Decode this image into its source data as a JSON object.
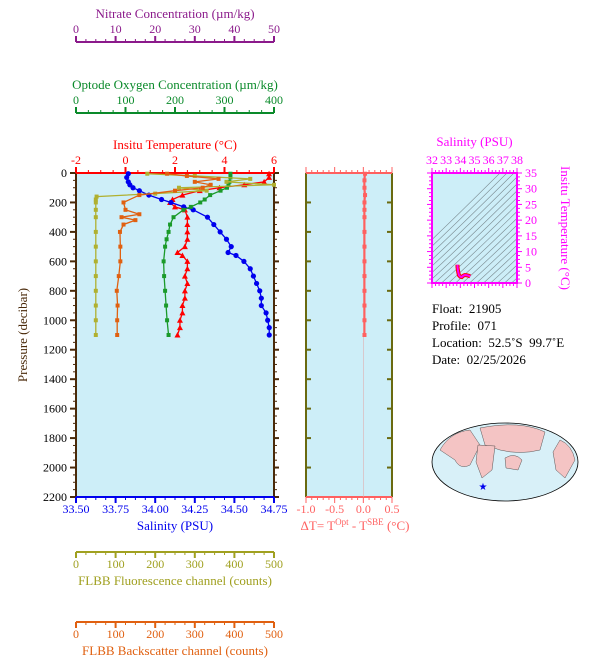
{
  "chart_data": [
    {
      "type": "line",
      "title": "",
      "ylabel": "Pressure (decibar)",
      "ylim": [
        2200,
        0
      ],
      "yticks": [
        0,
        200,
        400,
        600,
        800,
        1000,
        1200,
        1400,
        1600,
        1800,
        2000,
        2200
      ],
      "axes": [
        {
          "key": "nitrate",
          "label": "Nitrate Concentration (µm/kg)",
          "range": [
            0,
            50
          ],
          "ticks": [
            "0",
            "10",
            "20",
            "30",
            "40",
            "50"
          ],
          "color": "#8b1a8b",
          "position": "top"
        },
        {
          "key": "oxygen",
          "label": "Optode Oxygen Concentration (µm/kg)",
          "range": [
            0,
            400
          ],
          "ticks": [
            "0",
            "100",
            "200",
            "300",
            "400"
          ],
          "color": "#0a8a2a",
          "position": "top"
        },
        {
          "key": "temp",
          "label": "Insitu Temperature (°C)",
          "range": [
            -2,
            6
          ],
          "ticks": [
            "-2",
            "0",
            "2",
            "4",
            "6"
          ],
          "color": "#ff0000",
          "position": "top"
        },
        {
          "key": "sal",
          "label": "Salinity (PSU)",
          "range": [
            33.5,
            34.75
          ],
          "ticks": [
            "33.50",
            "33.75",
            "34.00",
            "34.25",
            "34.50",
            "34.75"
          ],
          "color": "#0000ee",
          "position": "bottom"
        },
        {
          "key": "fluor",
          "label": "FLBB Fluorescence channel (counts)",
          "range": [
            0,
            500
          ],
          "ticks": [
            "0",
            "100",
            "200",
            "300",
            "400",
            "500"
          ],
          "color": "#a0a020",
          "position": "bottom"
        },
        {
          "key": "bb",
          "label": "FLBB Backscatter channel (counts)",
          "range": [
            0,
            500
          ],
          "ticks": [
            "0",
            "100",
            "200",
            "300",
            "400",
            "500"
          ],
          "color": "#e06010",
          "position": "bottom"
        }
      ],
      "series": [
        {
          "axis": "temp",
          "color": "#ff0000",
          "marker": "triangle",
          "pressure": [
            5,
            30,
            60,
            80,
            100,
            120,
            150,
            180,
            200,
            230,
            250,
            300,
            350,
            400,
            450,
            500,
            540,
            560,
            600,
            650,
            700,
            750,
            800,
            850,
            900,
            950,
            1000,
            1050,
            1100
          ],
          "values": [
            5.8,
            5.8,
            5.6,
            4.8,
            3.8,
            3.0,
            2.3,
            1.9,
            1.8,
            2.0,
            2.4,
            2.5,
            2.5,
            2.5,
            2.5,
            2.4,
            2.1,
            2.3,
            2.5,
            2.5,
            2.4,
            2.5,
            2.4,
            2.4,
            2.3,
            2.3,
            2.2,
            2.2,
            2.1
          ]
        },
        {
          "axis": "sal",
          "color": "#0000ee",
          "marker": "circle",
          "pressure": [
            5,
            30,
            60,
            80,
            100,
            120,
            150,
            180,
            200,
            230,
            250,
            300,
            350,
            400,
            450,
            500,
            540,
            560,
            600,
            650,
            700,
            750,
            800,
            850,
            900,
            950,
            1000,
            1050,
            1100
          ],
          "values": [
            33.83,
            33.82,
            33.83,
            33.84,
            33.86,
            33.9,
            33.96,
            34.04,
            34.1,
            34.18,
            34.24,
            34.33,
            34.37,
            34.41,
            34.45,
            34.48,
            34.46,
            34.51,
            34.56,
            34.6,
            34.62,
            34.64,
            34.66,
            34.67,
            34.67,
            34.7,
            34.71,
            34.72,
            34.72
          ]
        },
        {
          "axis": "oxygen",
          "color": "#1a9a2a",
          "marker": "square",
          "pressure": [
            5,
            30,
            60,
            80,
            100,
            120,
            150,
            180,
            200,
            230,
            250,
            300,
            350,
            400,
            450,
            500,
            600,
            700,
            800,
            900,
            1000,
            1100
          ],
          "values": [
            312,
            312,
            310,
            308,
            305,
            292,
            271,
            260,
            251,
            232,
            217,
            197,
            190,
            187,
            183,
            180,
            177,
            178,
            180,
            182,
            184,
            187
          ]
        },
        {
          "axis": "fluor",
          "color": "#b0b030",
          "marker": "square",
          "pressure": [
            5,
            20,
            40,
            60,
            80,
            100,
            120,
            140,
            160,
            180,
            200,
            250,
            300,
            400,
            500,
            600,
            700,
            800,
            900,
            1000,
            1100
          ],
          "values": [
            180,
            300,
            440,
            380,
            500,
            260,
            330,
            200,
            52,
            50,
            50,
            50,
            50,
            50,
            50,
            50,
            50,
            50,
            50,
            50,
            50
          ]
        },
        {
          "axis": "bb",
          "color": "#e06010",
          "marker": "square",
          "pressure": [
            5,
            20,
            40,
            60,
            80,
            100,
            120,
            150,
            200,
            250,
            280,
            300,
            320,
            350,
            400,
            500,
            600,
            700,
            800,
            900,
            1000,
            1100
          ],
          "values": [
            230,
            280,
            360,
            300,
            340,
            320,
            250,
            160,
            120,
            125,
            160,
            115,
            150,
            120,
            111,
            112,
            112,
            108,
            103,
            105,
            104,
            104
          ]
        }
      ]
    },
    {
      "type": "line",
      "xlabel": "ΔT= T^Opt - T^SBE (°C)",
      "xlabel_parts": [
        "ΔT= T",
        "Opt",
        " - T",
        "SBE",
        " (°C)"
      ],
      "xlim": [
        -1.0,
        0.5
      ],
      "xticks": [
        "-1.0",
        "-0.5",
        "0.0",
        "0.5"
      ],
      "ylim": [
        2200,
        0
      ],
      "color": "#ff6060",
      "series": [
        {
          "pressure": [
            5,
            50,
            100,
            150,
            200,
            250,
            300,
            400,
            500,
            600,
            700,
            800,
            900,
            1000,
            1100
          ],
          "values": [
            0.03,
            0.02,
            0.02,
            0.03,
            0.02,
            0.02,
            0.02,
            0.02,
            0.02,
            0.02,
            0.02,
            0.02,
            0.02,
            0.02,
            0.02
          ]
        }
      ]
    },
    {
      "type": "scatter",
      "title": "Salinity (PSU)",
      "ylabel": "Insitu Temperature (°C)",
      "xlim": [
        32,
        38
      ],
      "ylim": [
        0,
        35
      ],
      "xticks": [
        "32",
        "33",
        "34",
        "35",
        "36",
        "37",
        "38"
      ],
      "yticks": [
        "0",
        "5",
        "10",
        "15",
        "20",
        "25",
        "30",
        "35"
      ],
      "color": "#ff00ff",
      "grid": "density contours",
      "points": {
        "sal": [
          33.8,
          33.8,
          33.85,
          33.9,
          34.0,
          34.1,
          34.2,
          34.3,
          34.4,
          34.5,
          34.6,
          34.7
        ],
        "temp": [
          5.8,
          5.0,
          3.5,
          2.5,
          2.0,
          1.9,
          2.3,
          2.5,
          2.5,
          2.4,
          2.3,
          2.1
        ]
      }
    }
  ],
  "info": {
    "float_label": "Float:",
    "float": "21905",
    "profile_label": "Profile:",
    "profile": "071",
    "location_label": "Location:",
    "location": "52.5˚S  99.7˚E",
    "date_label": "Date:",
    "date": "02/25/2026"
  }
}
